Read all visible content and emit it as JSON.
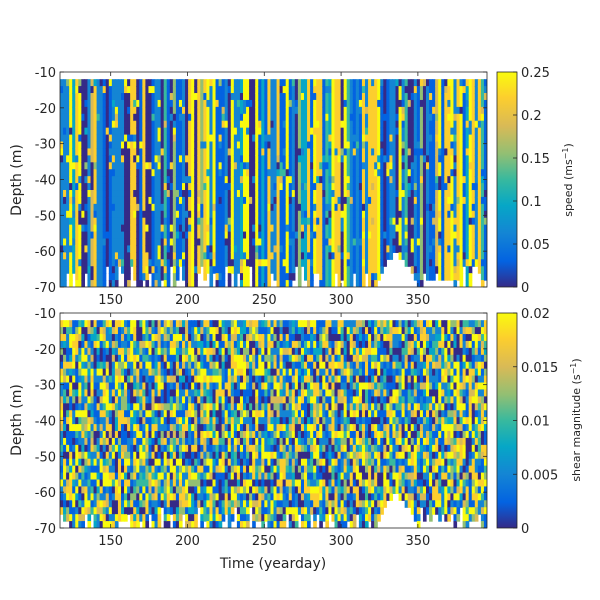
{
  "chart_data": [
    {
      "type": "heatmap",
      "panel": "top",
      "variable": "speed",
      "xlabel": "",
      "ylabel": "Depth (m)",
      "xlim": [
        117,
        395
      ],
      "ylim": [
        -70,
        -10
      ],
      "xticks": [
        "150",
        "200",
        "250",
        "300",
        "350"
      ],
      "yticks": [
        "-10",
        "-20",
        "-30",
        "-40",
        "-50",
        "-60",
        "-70"
      ],
      "colorbar": {
        "label_main": "speed (ms",
        "label_sup": "−1",
        "label_end": ")",
        "range": [
          0,
          0.25
        ],
        "ticks": [
          "0",
          "0.05",
          "0.1",
          "0.15",
          "0.2",
          "0.25"
        ]
      },
      "colormap": "parula",
      "structure": "mostly vertical stripes (time-coherent) over depth -12 to -70 m",
      "approx_distribution": {
        "low_fraction": 0.55,
        "high_fraction": 0.3
      }
    },
    {
      "type": "heatmap",
      "panel": "bottom",
      "variable": "shear magnitude",
      "xlabel": "Time (yearday)",
      "ylabel": "Depth (m)",
      "xlim": [
        117,
        395
      ],
      "ylim": [
        -70,
        -10
      ],
      "xticks": [
        "150",
        "200",
        "250",
        "300",
        "350"
      ],
      "yticks": [
        "-10",
        "-20",
        "-30",
        "-40",
        "-50",
        "-60",
        "-70"
      ],
      "colorbar": {
        "label_main": "shear magnitude (s",
        "label_sup": "−1",
        "label_end": ")",
        "range": [
          0,
          0.02
        ],
        "ticks": [
          "0",
          "0.005",
          "0.01",
          "0.015",
          "0.02"
        ]
      },
      "colormap": "parula",
      "structure": "speckled patches with both time and depth variability over depth -12 to -70 m",
      "approx_distribution": {
        "low_fraction": 0.45,
        "high_fraction": 0.3
      }
    }
  ]
}
